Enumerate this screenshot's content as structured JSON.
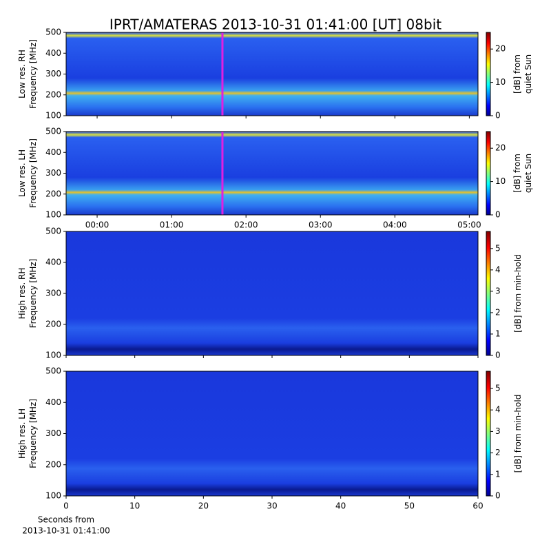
{
  "title": "IPRT/AMATERAS 2013-10-31 01:41:00 [UT]   08bit",
  "chart_data": [
    {
      "type": "spectrogram",
      "ylabel": [
        "Low res. RH",
        "Frequency [MHz]"
      ],
      "ylim": [
        100,
        500
      ],
      "yticks": [
        100,
        200,
        300,
        400,
        500
      ],
      "xlim": [
        -25,
        307
      ],
      "marker": 101,
      "colorbar": {
        "label": [
          "[dB] from",
          "quiet Sun"
        ],
        "lim": [
          0,
          25
        ],
        "ticks": [
          0,
          10,
          20
        ]
      }
    },
    {
      "type": "spectrogram",
      "ylabel": [
        "Low res. LH",
        "Frequency [MHz]"
      ],
      "ylim": [
        100,
        500
      ],
      "yticks": [
        100,
        200,
        300,
        400,
        500
      ],
      "xlim": [
        -25,
        307
      ],
      "marker": 101,
      "xticks": [
        {
          "value": 0,
          "label": "00:00"
        },
        {
          "value": 60,
          "label": "01:00"
        },
        {
          "value": 120,
          "label": "02:00"
        },
        {
          "value": 180,
          "label": "03:00"
        },
        {
          "value": 240,
          "label": "04:00"
        },
        {
          "value": 300,
          "label": "05:00"
        }
      ],
      "colorbar": {
        "label": [
          "[dB] from",
          "quiet Sun"
        ],
        "lim": [
          0,
          25
        ],
        "ticks": [
          0,
          10,
          20
        ]
      }
    },
    {
      "type": "spectrogram",
      "ylabel": [
        "High res. RH",
        "Frequency [MHz]"
      ],
      "ylim": [
        100,
        500
      ],
      "yticks": [
        100,
        200,
        300,
        400,
        500
      ],
      "xlim": [
        0,
        60
      ],
      "colorbar": {
        "label": [
          "[dB] from min-hold"
        ],
        "lim": [
          0,
          5.8
        ],
        "ticks": [
          0,
          1,
          2,
          3,
          4,
          5
        ]
      }
    },
    {
      "type": "spectrogram",
      "ylabel": [
        "High res. LH",
        "Frequency [MHz]"
      ],
      "ylim": [
        100,
        500
      ],
      "yticks": [
        100,
        200,
        300,
        400,
        500
      ],
      "xlim": [
        0,
        60
      ],
      "xticks": [
        0,
        10,
        20,
        30,
        40,
        50,
        60
      ],
      "xlabel": [
        "Seconds from",
        "2013-10-31 01:41:00"
      ],
      "colorbar": {
        "label": [
          "[dB] from min-hold"
        ],
        "lim": [
          0,
          5.8
        ],
        "ticks": [
          0,
          1,
          2,
          3,
          4,
          5
        ]
      }
    }
  ]
}
